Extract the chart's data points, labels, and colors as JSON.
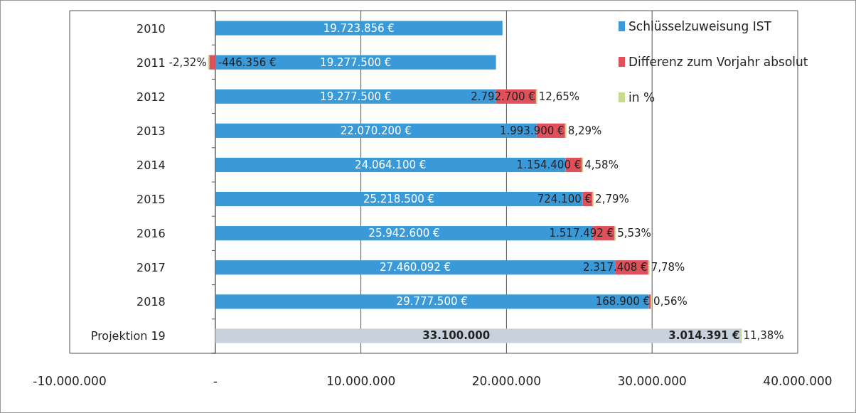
{
  "chart_data": {
    "type": "bar",
    "orientation": "horizontal",
    "stacked": true,
    "legend": "top right",
    "grid": "x",
    "categories": [
      "2010",
      "2011",
      "2012",
      "2013",
      "2014",
      "2015",
      "2016",
      "2017",
      "2018",
      "Projektion 19"
    ],
    "xlim": [
      -10000000,
      40000000
    ],
    "xticks": [
      {
        "value": -10000000,
        "label": "-10.000.000"
      },
      {
        "value": 0,
        "label": "-"
      },
      {
        "value": 10000000,
        "label": "10.000.000"
      },
      {
        "value": 20000000,
        "label": "20.000.000"
      },
      {
        "value": 30000000,
        "label": "30.000.000"
      },
      {
        "value": 40000000,
        "label": "40.000.000"
      }
    ],
    "series": [
      {
        "name": "Schlüsselzuweisung IST",
        "color": "#3a9ad9",
        "colors": [
          "#3a9ad9",
          "#3a9ad9",
          "#3a9ad9",
          "#3a9ad9",
          "#3a9ad9",
          "#3a9ad9",
          "#3a9ad9",
          "#3a9ad9",
          "#3a9ad9",
          "#c8d2dc"
        ],
        "values": [
          19723856,
          19277500,
          19277500,
          22070200,
          24064100,
          25218500,
          25942600,
          27460092,
          29777500,
          33100000
        ],
        "value_labels": [
          "19.723.856 €",
          "19.277.500 €",
          "19.277.500 €",
          "22.070.200 €",
          "24.064.100 €",
          "25.218.500 €",
          "25.942.600 €",
          "27.460.092 €",
          "29.777.500 €",
          "33.100.000"
        ]
      },
      {
        "name": "Differenz zum Vorjahr absolut",
        "color": "#e0505a",
        "colors": [
          "#e0505a",
          "#e0505a",
          "#e0505a",
          "#e0505a",
          "#e0505a",
          "#e0505a",
          "#e0505a",
          "#e0505a",
          "#e0505a",
          "#c8d2dc"
        ],
        "values": [
          null,
          -446356,
          2792700,
          1993900,
          1154400,
          724100,
          1517492,
          2317408,
          168900,
          3014391
        ],
        "value_labels": [
          null,
          "-446.356 €",
          "2.792.700 €",
          "1.993.900 €",
          "1.154.400 €",
          "724.100 €",
          "1.517.492 €",
          "2.317.408 €",
          "168.900 €",
          "3.014.391 €"
        ]
      },
      {
        "name": "in %",
        "color": "#c9d98f",
        "values": [
          null,
          -2.32,
          12.65,
          8.29,
          4.58,
          2.79,
          5.53,
          7.78,
          0.56,
          11.38
        ],
        "value_labels": [
          null,
          "-2,32%",
          "12,65%",
          "8,29%",
          "4,58%",
          "2,79%",
          "5,53%",
          "7,78%",
          "0,56%",
          "11,38%"
        ]
      }
    ]
  }
}
